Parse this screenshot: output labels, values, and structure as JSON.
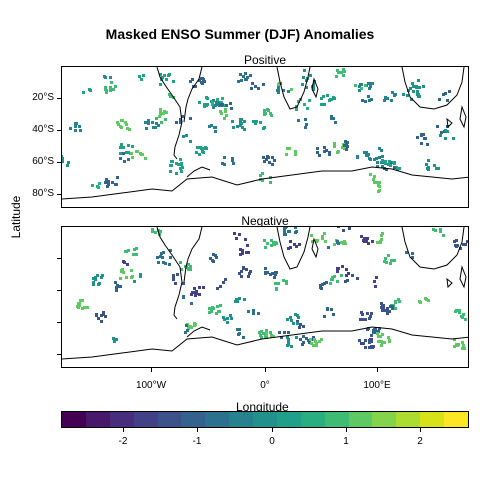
{
  "title": "Masked ENSO Summer (DJF) Anomalies",
  "panels": [
    {
      "label": "Positive"
    },
    {
      "label": "Negative"
    }
  ],
  "y_axis": {
    "label": "Latitude",
    "ticks": [
      "20°S",
      "40°S",
      "60°S",
      "80°S"
    ]
  },
  "x_axis": {
    "label": "Longitude",
    "ticks": [
      "100°W",
      "0°",
      "100°E"
    ]
  },
  "colorbar": {
    "ticks": [
      "-2",
      "-1",
      "0",
      "1",
      "2"
    ],
    "colors": [
      "#440154",
      "#48186a",
      "#472d7b",
      "#424086",
      "#3b528b",
      "#33638d",
      "#2c728e",
      "#26828e",
      "#21918c",
      "#1fa088",
      "#28ae80",
      "#3fbc73",
      "#5ec962",
      "#84d44b",
      "#addc30",
      "#d8e219",
      "#fde725"
    ]
  },
  "chart_data": {
    "type": "heatmap",
    "title": "Masked ENSO Summer (DJF) Anomalies",
    "xlabel": "Longitude",
    "ylabel": "Latitude",
    "panels": [
      "Positive",
      "Negative"
    ],
    "color_scale": {
      "name": "viridis",
      "range": [
        -2.6,
        2.6
      ],
      "ticks": [
        -2,
        -1,
        0,
        1,
        2
      ]
    },
    "x_ticks": [
      "100°W",
      "0°",
      "100°E"
    ],
    "y_ticks": [
      "20°S",
      "40°S",
      "60°S",
      "80°S"
    ]
  }
}
